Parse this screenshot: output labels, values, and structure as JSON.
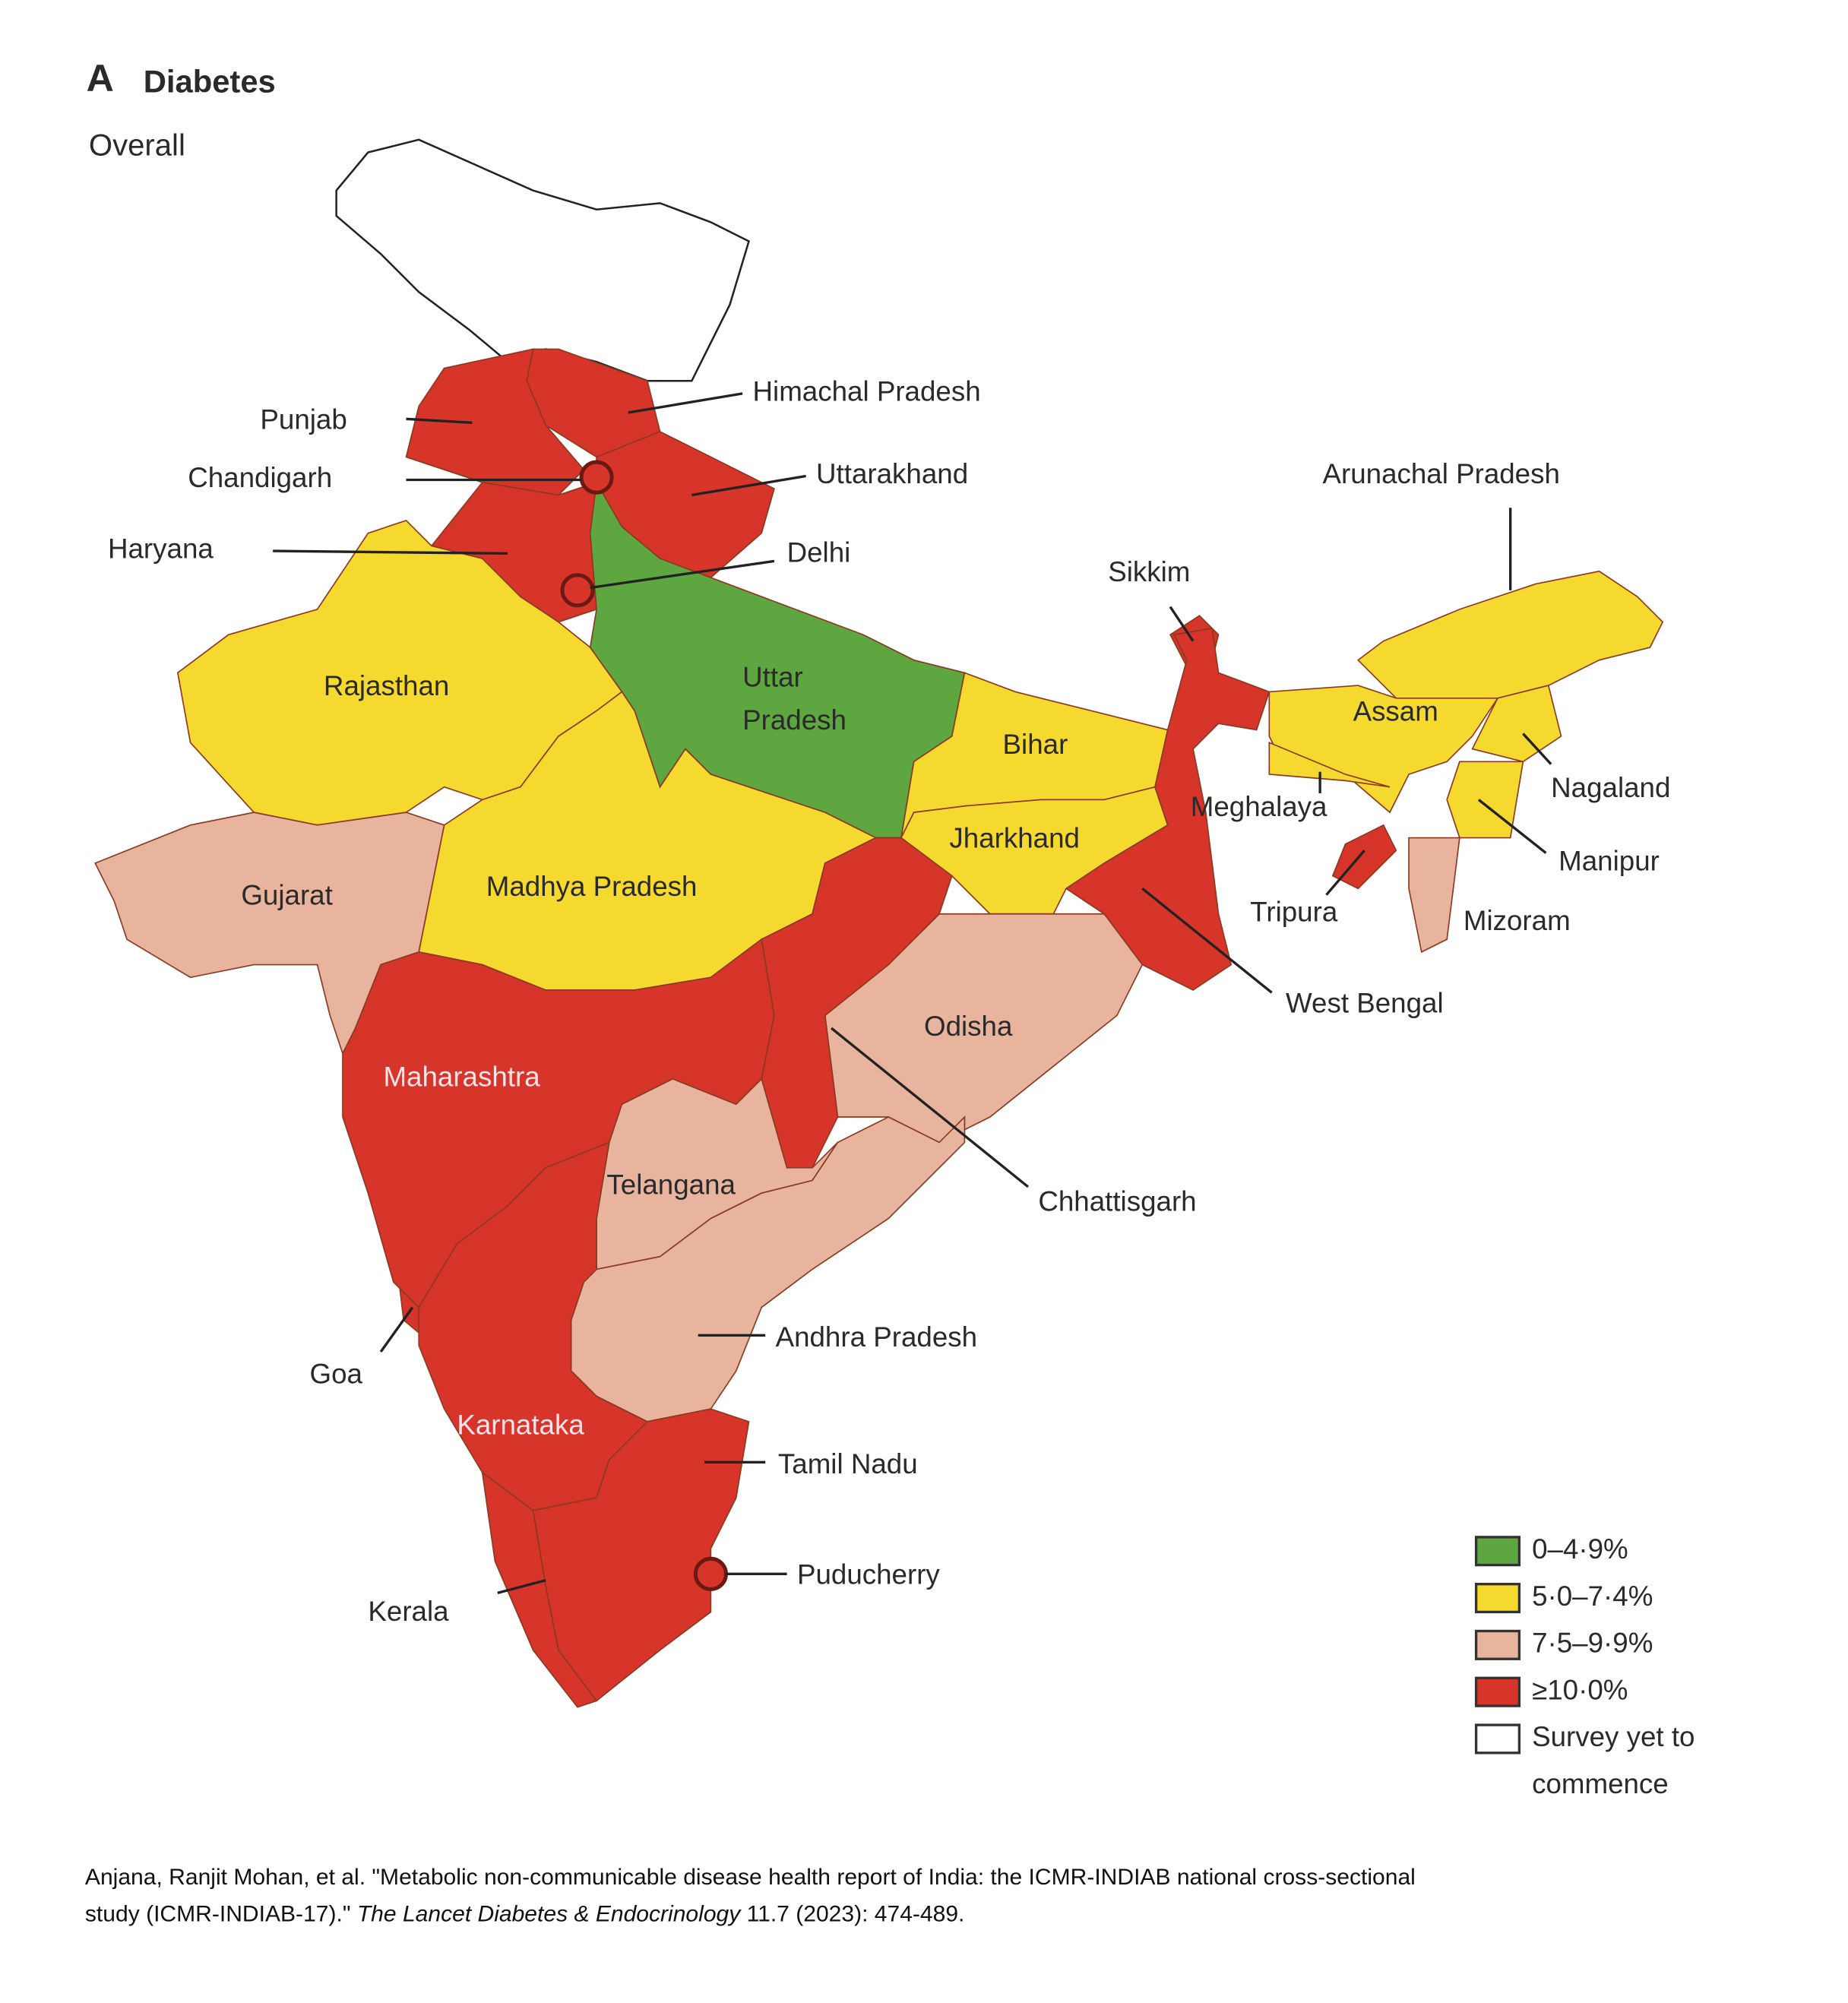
{
  "panel_letter": "A",
  "title": "Diabetes",
  "subtitle": "Overall",
  "states": [
    {
      "label": "Himachal Pradesh",
      "legend_item": 3
    },
    {
      "label": "Punjab",
      "legend_item": 3
    },
    {
      "label": "Chandigarh",
      "legend_item": 3
    },
    {
      "label": "Uttarakhand",
      "legend_item": 3
    },
    {
      "label": "Haryana",
      "legend_item": 3
    },
    {
      "label": "Delhi",
      "legend_item": 3
    },
    {
      "label": "Sikkim",
      "legend_item": 3
    },
    {
      "label": "Arunachal Pradesh",
      "legend_item": 1
    },
    {
      "label": "Rajasthan",
      "legend_item": 1
    },
    {
      "label": [
        "Uttar",
        "Pradesh"
      ],
      "legend_item": 0
    },
    {
      "label": "Bihar",
      "legend_item": 1
    },
    {
      "label": "Assam",
      "legend_item": 1
    },
    {
      "label": "Nagaland",
      "legend_item": 1
    },
    {
      "label": "Meghalaya",
      "legend_item": 1
    },
    {
      "label": "Manipur",
      "legend_item": 1
    },
    {
      "label": "Jharkhand",
      "legend_item": 1
    },
    {
      "label": "Gujarat",
      "legend_item": 2
    },
    {
      "label": "Madhya Pradesh",
      "legend_item": 1
    },
    {
      "label": "Tripura",
      "legend_item": 3
    },
    {
      "label": "Mizoram",
      "legend_item": 2
    },
    {
      "label": "West Bengal",
      "legend_item": 3
    },
    {
      "label": "Odisha",
      "legend_item": 2
    },
    {
      "label": "Maharashtra",
      "legend_item": 3
    },
    {
      "label": "Chhattisgarh",
      "legend_item": 3
    },
    {
      "label": "Telangana",
      "legend_item": 2
    },
    {
      "label": "Andhra Pradesh",
      "legend_item": 2
    },
    {
      "label": "Goa",
      "legend_item": 3
    },
    {
      "label": "Karnataka",
      "legend_item": 3
    },
    {
      "label": "Tamil Nadu",
      "legend_item": 3
    },
    {
      "label": "Puducherry",
      "legend_item": 3
    },
    {
      "label": "Kerala",
      "legend_item": 3
    }
  ],
  "legend": [
    {
      "label": [
        "0–4·9%"
      ],
      "color": "#5ea63f"
    },
    {
      "label": [
        "5·0–7·4%"
      ],
      "color": "#f6d92e"
    },
    {
      "label": [
        "7·5–9·9%"
      ],
      "color": "#e8b49e"
    },
    {
      "label": [
        "≥10·0%"
      ],
      "color": "#d7342a"
    },
    {
      "label": [
        "Survey yet to",
        "commence"
      ],
      "color": "#ffffff"
    }
  ],
  "citation": [
    "Anjana, Ranjit Mohan, et al. \"Metabolic non-communicable disease health report of India: the ICMR-INDIAB national cross-sectional",
    "study (ICMR-INDIAB-17).\"",
    "The Lancet Diabetes & Endocrinology",
    "11.7 (2023): 474-489."
  ]
}
